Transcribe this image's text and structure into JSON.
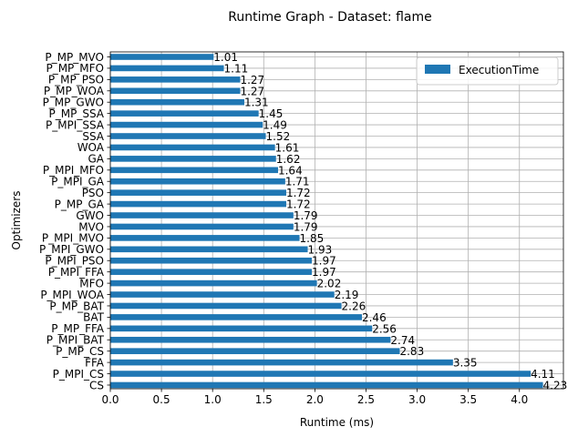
{
  "chart_data": {
    "type": "bar",
    "orientation": "horizontal",
    "title": "Runtime Graph - Dataset: flame",
    "xlabel": "Runtime (ms)",
    "ylabel": "Optimizers",
    "xlim": [
      0,
      4.43
    ],
    "xticks": [
      0.0,
      0.5,
      1.0,
      1.5,
      2.0,
      2.5,
      3.0,
      3.5,
      4.0
    ],
    "xtick_labels": [
      "0.0",
      "0.5",
      "1.0",
      "1.5",
      "2.0",
      "2.5",
      "3.0",
      "3.5",
      "4.0"
    ],
    "grid": true,
    "legend_position": "top-right",
    "categories": [
      "CS",
      "P_MPI_CS",
      "FFA",
      "P_MP_CS",
      "P_MPI_BAT",
      "P_MP_FFA",
      "BAT",
      "P_MP_BAT",
      "P_MPI_WOA",
      "MFO",
      "P_MPI_FFA",
      "P_MPI_PSO",
      "P_MPI_GWO",
      "P_MPI_MVO",
      "MVO",
      "GWO",
      "P_MP_GA",
      "PSO",
      "P_MPI_GA",
      "P_MPI_MFO",
      "GA",
      "WOA",
      "SSA",
      "P_MPI_SSA",
      "P_MP_SSA",
      "P_MP_GWO",
      "P_MP_WOA",
      "P_MP_PSO",
      "P_MP_MFO",
      "P_MP_MVO"
    ],
    "series": [
      {
        "name": "ExecutionTime",
        "color": "#1f77b4",
        "values": [
          4.23,
          4.11,
          3.35,
          2.83,
          2.74,
          2.56,
          2.46,
          2.26,
          2.19,
          2.02,
          1.97,
          1.97,
          1.93,
          1.85,
          1.79,
          1.79,
          1.72,
          1.72,
          1.71,
          1.64,
          1.62,
          1.61,
          1.52,
          1.49,
          1.45,
          1.31,
          1.27,
          1.27,
          1.11,
          1.01
        ],
        "labels": [
          "4.23",
          "4.11",
          "3.35",
          "2.83",
          "2.74",
          "2.56",
          "2.46",
          "2.26",
          "2.19",
          "2.02",
          "1.97",
          "1.97",
          "1.93",
          "1.85",
          "1.79",
          "1.79",
          "1.72",
          "1.72",
          "1.71",
          "1.64",
          "1.62",
          "1.61",
          "1.52",
          "1.49",
          "1.45",
          "1.31",
          "1.27",
          "1.27",
          "1.11",
          "1.01"
        ]
      }
    ]
  }
}
